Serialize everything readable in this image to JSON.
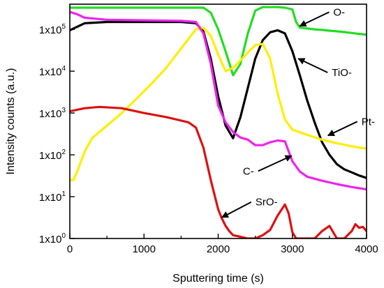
{
  "chart_data": {
    "type": "line",
    "xlabel": "Sputtering time (s)",
    "ylabel": "Intensity counts (a.u.)",
    "xscale": "linear",
    "yscale": "log",
    "xlim": [
      0,
      4000
    ],
    "ylim": [
      1,
      400000
    ],
    "grid": false,
    "x_ticks": [
      {
        "value": 0,
        "label": "0"
      },
      {
        "value": 1000,
        "label": "1000"
      },
      {
        "value": 2000,
        "label": "2000"
      },
      {
        "value": 3000,
        "label": "3000"
      },
      {
        "value": 4000,
        "label": "4000"
      }
    ],
    "y_ticks": [
      {
        "value": 1,
        "base": "1x10",
        "exp": "0"
      },
      {
        "value": 10,
        "base": "1x10",
        "exp": "1"
      },
      {
        "value": 100,
        "base": "1x10",
        "exp": "2"
      },
      {
        "value": 1000,
        "base": "1x10",
        "exp": "3"
      },
      {
        "value": 10000,
        "base": "1x10",
        "exp": "4"
      },
      {
        "value": 100000,
        "base": "1x10",
        "exp": "5"
      }
    ],
    "series": [
      {
        "name": "O-",
        "color": "#22dd22",
        "x": [
          0,
          500,
          1000,
          1500,
          1800,
          1900,
          2000,
          2100,
          2200,
          2300,
          2400,
          2500,
          2600,
          2700,
          2800,
          2900,
          3000,
          3050,
          3100,
          3200,
          3300,
          3400,
          3500,
          3600,
          3700,
          3800,
          3900,
          4000
        ],
        "y": [
          330000,
          330000,
          330000,
          330000,
          330000,
          250000,
          100000,
          30000,
          8000,
          15000,
          80000,
          280000,
          340000,
          340000,
          340000,
          330000,
          300000,
          150000,
          110000,
          105000,
          100000,
          97000,
          93000,
          90000,
          86000,
          82000,
          78000,
          75000
        ]
      },
      {
        "name": "TiO-",
        "color": "#000000",
        "x": [
          0,
          200,
          500,
          1000,
          1500,
          1700,
          1800,
          1900,
          2000,
          2100,
          2200,
          2300,
          2400,
          2500,
          2600,
          2700,
          2800,
          2900,
          3000,
          3100,
          3200,
          3300,
          3400,
          3500,
          3600,
          3700,
          3800,
          3900,
          4000
        ],
        "y": [
          95000,
          140000,
          150000,
          150000,
          150000,
          140000,
          90000,
          20000,
          2500,
          500,
          250,
          800,
          4000,
          20000,
          55000,
          85000,
          95000,
          80000,
          30000,
          8000,
          2000,
          600,
          200,
          100,
          60,
          45,
          38,
          32,
          28
        ]
      },
      {
        "name": "Pt-",
        "color": "#ffee00",
        "x": [
          0,
          50,
          100,
          200,
          300,
          500,
          700,
          900,
          1100,
          1300,
          1500,
          1700,
          1800,
          1900,
          2000,
          2100,
          2200,
          2300,
          2400,
          2500,
          2600,
          2700,
          2800,
          2900,
          3000,
          3200,
          3400,
          3600,
          3800,
          4000
        ],
        "y": [
          25,
          25,
          40,
          120,
          250,
          500,
          1000,
          2200,
          5000,
          12000,
          35000,
          100000,
          110000,
          70000,
          25000,
          10000,
          12000,
          18000,
          28000,
          42000,
          45000,
          20000,
          3000,
          700,
          400,
          300,
          230,
          190,
          160,
          140
        ]
      },
      {
        "name": "C-",
        "color": "#ee22ee",
        "x": [
          0,
          100,
          200,
          500,
          1000,
          1500,
          1700,
          1800,
          1900,
          2000,
          2100,
          2200,
          2300,
          2400,
          2500,
          2600,
          2700,
          2800,
          2900,
          3000,
          3100,
          3200,
          3400,
          3600,
          3800,
          4000
        ],
        "y": [
          260000,
          230000,
          190000,
          170000,
          165000,
          160000,
          150000,
          80000,
          15000,
          1500,
          600,
          350,
          260,
          230,
          170,
          170,
          200,
          220,
          210,
          70,
          40,
          30,
          24,
          20,
          17,
          15
        ]
      },
      {
        "name": "SrO-",
        "color": "#dd1111",
        "x": [
          0,
          200,
          400,
          700,
          1000,
          1300,
          1600,
          1700,
          1800,
          1900,
          2000,
          2050,
          2100,
          2150,
          2200,
          2300,
          2400,
          2500,
          2600,
          2700,
          2800,
          2900,
          2950,
          3000,
          3050,
          3100,
          3200,
          3300,
          3400,
          3500,
          3600,
          3700,
          3800,
          3850,
          3900,
          3950,
          4000
        ],
        "y": [
          1100,
          1300,
          1400,
          1300,
          1000,
          800,
          600,
          450,
          150,
          25,
          5,
          3,
          2,
          1.5,
          1.2,
          1.1,
          1.0,
          1.0,
          1.2,
          1.6,
          3.5,
          6.5,
          4,
          1.4,
          1.0,
          1.0,
          1.0,
          1.0,
          1.5,
          2.0,
          1.0,
          1.0,
          1.5,
          2.2,
          1.8,
          1.9,
          1.5
        ]
      }
    ],
    "annotations": [
      {
        "text": "O-",
        "series": "O-",
        "x": 3100,
        "y": 120000
      },
      {
        "text": "TiO-",
        "series": "TiO-",
        "x": 3080,
        "y": 20000
      },
      {
        "text": "Pt-",
        "series": "Pt-",
        "x": 3480,
        "y": 290
      },
      {
        "text": "C-",
        "series": "C-",
        "x": 2990,
        "y": 95
      },
      {
        "text": "SrO-",
        "series": "SrO-",
        "x": 2050,
        "y": 3.2
      }
    ]
  }
}
